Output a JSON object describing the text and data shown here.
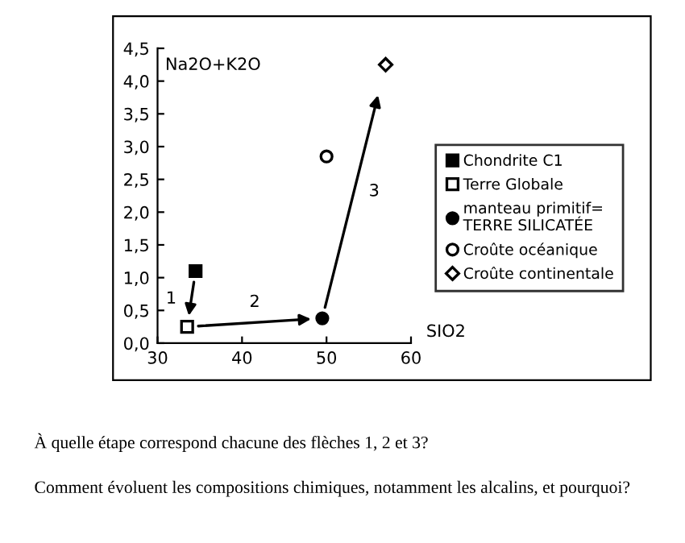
{
  "chart_data": {
    "type": "scatter",
    "xlabel": "SIO2",
    "ylabel": "Na2O+K2O",
    "xlim": [
      30,
      60
    ],
    "xticks": [
      30,
      40,
      50,
      60
    ],
    "ylim": [
      0,
      4.5
    ],
    "yticks": [
      {
        "value": 0,
        "label": "0,0"
      },
      {
        "value": 0.5,
        "label": "0,5"
      },
      {
        "value": 1,
        "label": "1,0"
      },
      {
        "value": 1.5,
        "label": "1,5"
      },
      {
        "value": 2,
        "label": "2,0"
      },
      {
        "value": 2.5,
        "label": "2,5"
      },
      {
        "value": 3,
        "label": "3,0"
      },
      {
        "value": 3.5,
        "label": "3,5"
      },
      {
        "value": 4,
        "label": "4,0"
      },
      {
        "value": 4.5,
        "label": "4,5"
      }
    ],
    "series": [
      {
        "name": "Chondrite C1",
        "color": "#000000",
        "marker": "square",
        "x": [
          34.5
        ],
        "values": [
          1.1
        ]
      },
      {
        "name": "Terre Globale",
        "color": "#000000",
        "marker": "square",
        "x": [
          33.5
        ],
        "values": [
          0.25
        ]
      },
      {
        "name": "manteau primitif=\nTERRE SILICATÉE",
        "color": "#000000",
        "marker": "circle",
        "x": [
          49.5
        ],
        "values": [
          0.38
        ]
      },
      {
        "name": "Croûte océanique",
        "color": "#000000",
        "marker": "circle",
        "x": [
          50
        ],
        "values": [
          2.85
        ]
      },
      {
        "name": "Croûte continentale",
        "color": "#000000",
        "marker": "diamond",
        "x": [
          57
        ],
        "values": [
          4.25
        ]
      }
    ],
    "annotations": [
      "1",
      "2",
      "3",
      "À quelle étape correspond chacune des flèches 1, 2 et 3?",
      "Comment évoluent les compositions chimiques, notamment les alcalins, et pourquoi?"
    ],
    "grid": false,
    "legend": "right"
  }
}
